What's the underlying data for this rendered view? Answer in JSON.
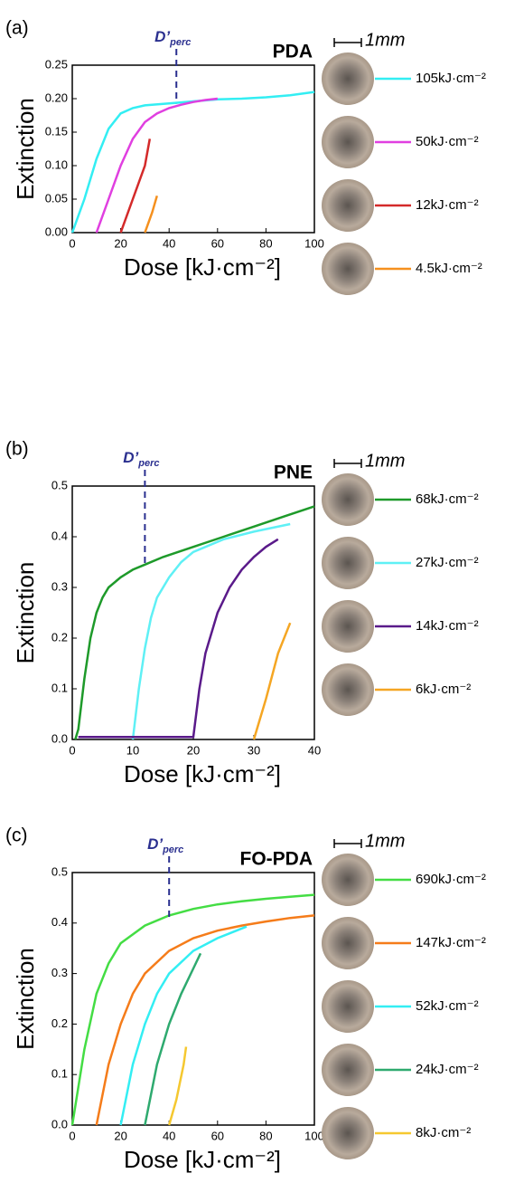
{
  "chart_data": [
    {
      "type": "line",
      "panel": "(a)",
      "title": "PDA",
      "annotation": "D’",
      "annotation_sub": "perc",
      "vline": {
        "x": 43,
        "to": 0.193
      },
      "y_label": "Extinction",
      "x_label": "Dose [kJ·cm⁻²]",
      "scale_bar": "1mm",
      "xlim": [
        0,
        100
      ],
      "xticks": [
        0,
        20,
        40,
        60,
        80,
        100
      ],
      "ylim": [
        0,
        0.25
      ],
      "yticks": [
        {
          "value": 0,
          "label": "0.00"
        },
        {
          "value": 0.05,
          "label": "0.05"
        },
        {
          "value": 0.1,
          "label": "0.10"
        },
        {
          "value": 0.15,
          "label": "0.15"
        },
        {
          "value": 0.2,
          "label": "0.20"
        },
        {
          "value": 0.25,
          "label": "0.25"
        }
      ],
      "series": [
        {
          "name": "105kJ·cm⁻²",
          "color": "#33eef3",
          "x": [
            0,
            5,
            10,
            15,
            20,
            25,
            30,
            40,
            50,
            60,
            70,
            80,
            90,
            100
          ],
          "values": [
            0,
            0.05,
            0.11,
            0.155,
            0.178,
            0.186,
            0.19,
            0.193,
            0.196,
            0.199,
            0.2,
            0.202,
            0.205,
            0.21
          ]
        },
        {
          "name": "50kJ·cm⁻²",
          "color": "#e03fe0",
          "x": [
            10,
            15,
            20,
            25,
            30,
            35,
            40,
            45,
            50,
            55,
            60
          ],
          "values": [
            0,
            0.05,
            0.1,
            0.14,
            0.165,
            0.178,
            0.186,
            0.191,
            0.195,
            0.198,
            0.2
          ]
        },
        {
          "name": "12kJ·cm⁻²",
          "color": "#d42a2a",
          "x": [
            20,
            25,
            30,
            32
          ],
          "values": [
            0,
            0.05,
            0.1,
            0.14
          ]
        },
        {
          "name": "4.5kJ·cm⁻²",
          "color": "#f5901e",
          "x": [
            30,
            33,
            35
          ],
          "values": [
            0,
            0.03,
            0.055
          ]
        }
      ]
    },
    {
      "type": "line",
      "panel": "(b)",
      "title": "PNE",
      "annotation": "D’",
      "annotation_sub": "perc",
      "vline": {
        "x": 12,
        "to": 0.345
      },
      "y_label": "Extinction",
      "x_label": "Dose [kJ·cm⁻²]",
      "scale_bar": "1mm",
      "xlim": [
        0,
        40
      ],
      "xticks": [
        0,
        10,
        20,
        30,
        40
      ],
      "ylim": [
        0,
        0.5
      ],
      "yticks": [
        {
          "value": 0,
          "label": "0.0"
        },
        0.1,
        0.2,
        0.3,
        0.4,
        0.5
      ],
      "series": [
        {
          "name": "68kJ·cm⁻²",
          "color": "#1e9a2a",
          "x": [
            0.5,
            1,
            2,
            3,
            4,
            5,
            6,
            8,
            10,
            12,
            15,
            20,
            25,
            30,
            35,
            40
          ],
          "values": [
            0,
            0.02,
            0.12,
            0.2,
            0.25,
            0.28,
            0.3,
            0.32,
            0.335,
            0.345,
            0.36,
            0.38,
            0.4,
            0.42,
            0.44,
            0.46
          ]
        },
        {
          "name": "27kJ·cm⁻²",
          "color": "#5ff0f5",
          "x": [
            10,
            11,
            12,
            13,
            14,
            16,
            18,
            20,
            25,
            30,
            36
          ],
          "values": [
            0,
            0.1,
            0.18,
            0.24,
            0.28,
            0.32,
            0.35,
            0.37,
            0.395,
            0.41,
            0.425
          ]
        },
        {
          "name": "14kJ·cm⁻²",
          "color": "#5a1a8a",
          "x": [
            1,
            20,
            21,
            22,
            24,
            26,
            28,
            30,
            32,
            34
          ],
          "values": [
            0.005,
            0.005,
            0.1,
            0.17,
            0.25,
            0.3,
            0.335,
            0.36,
            0.38,
            0.395
          ]
        },
        {
          "name": "6kJ·cm⁻²",
          "color": "#f5a623",
          "x": [
            30,
            32,
            34,
            36
          ],
          "values": [
            0,
            0.08,
            0.17,
            0.23
          ]
        }
      ]
    },
    {
      "type": "line",
      "panel": "(c)",
      "title": "FO-PDA",
      "annotation": "D’",
      "annotation_sub": "perc",
      "vline": {
        "x": 40,
        "to": 0.41
      },
      "y_label": "Extinction",
      "x_label": "Dose [kJ·cm⁻²]",
      "scale_bar": "1mm",
      "xlim": [
        0,
        100
      ],
      "xticks": [
        0,
        20,
        40,
        60,
        80,
        100
      ],
      "ylim": [
        0,
        0.5
      ],
      "yticks": [
        {
          "value": 0,
          "label": "0.0"
        },
        0.1,
        0.2,
        0.3,
        0.4,
        0.5
      ],
      "series": [
        {
          "name": "690kJ·cm⁻²",
          "color": "#44dd44",
          "x": [
            0,
            5,
            10,
            15,
            20,
            30,
            40,
            50,
            60,
            70,
            80,
            90,
            100
          ],
          "values": [
            0,
            0.15,
            0.26,
            0.32,
            0.36,
            0.395,
            0.415,
            0.428,
            0.437,
            0.443,
            0.448,
            0.452,
            0.456
          ]
        },
        {
          "name": "147kJ·cm⁻²",
          "color": "#f57c1a",
          "x": [
            10,
            15,
            20,
            25,
            30,
            40,
            50,
            60,
            70,
            80,
            90,
            100
          ],
          "values": [
            0,
            0.12,
            0.2,
            0.26,
            0.3,
            0.345,
            0.37,
            0.385,
            0.395,
            0.403,
            0.41,
            0.415
          ]
        },
        {
          "name": "52kJ·cm⁻²",
          "color": "#33eef3",
          "x": [
            20,
            25,
            30,
            35,
            40,
            50,
            60,
            72
          ],
          "values": [
            0,
            0.12,
            0.2,
            0.26,
            0.3,
            0.345,
            0.37,
            0.393
          ]
        },
        {
          "name": "24kJ·cm⁻²",
          "color": "#2eaa6f",
          "x": [
            30,
            35,
            40,
            45,
            50,
            53
          ],
          "values": [
            0,
            0.12,
            0.2,
            0.26,
            0.31,
            0.34
          ]
        },
        {
          "name": "8kJ·cm⁻²",
          "color": "#f5c830",
          "x": [
            40,
            43,
            46,
            47
          ],
          "values": [
            0,
            0.05,
            0.12,
            0.155
          ]
        }
      ]
    }
  ]
}
